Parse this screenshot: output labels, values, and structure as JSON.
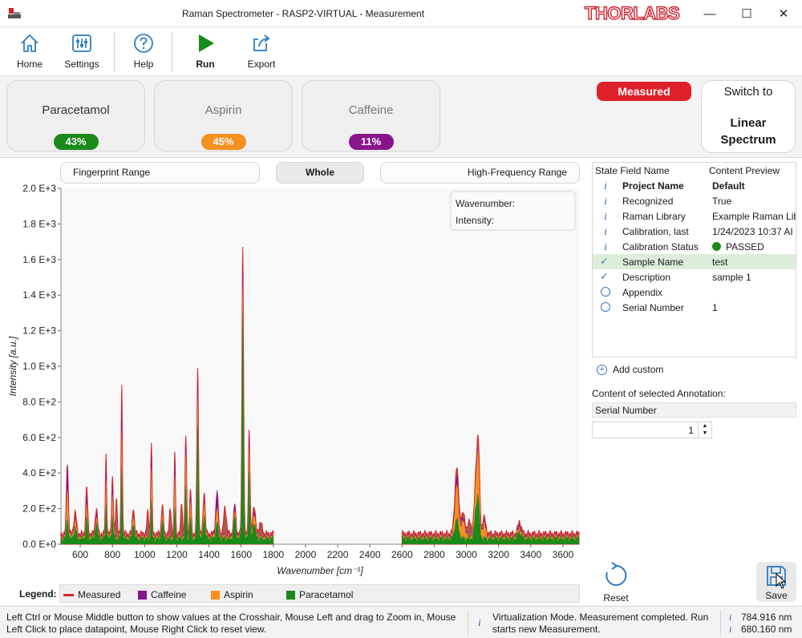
{
  "window": {
    "title": "Raman Spectrometer - RASP2-VIRTUAL - Measurement",
    "brand": "THORLABS",
    "minimize": "—",
    "maximize": "☐",
    "close": "✕"
  },
  "toolbar": {
    "home": "Home",
    "settings": "Settings",
    "help": "Help",
    "run": "Run",
    "export": "Export"
  },
  "substances": [
    {
      "name": "Paracetamol",
      "percent": "43%",
      "color": "#1a8a1a"
    },
    {
      "name": "Aspirin",
      "percent": "45%",
      "color": "#f5901e"
    },
    {
      "name": "Caffeine",
      "percent": "11%",
      "color": "#8a148c"
    }
  ],
  "status_badge": "Measured",
  "switch_button": {
    "line1": "Switch to",
    "line2": "Linear",
    "line3": "Spectrum"
  },
  "ranges": {
    "fingerprint": "Fingerprint Range",
    "whole": "Whole",
    "high_frequency": "High-Frequency Range"
  },
  "crosshair": {
    "wavenumber_label": "Wavenumber:",
    "intensity_label": "Intensity:"
  },
  "chart_data": {
    "type": "area",
    "xlabel": "Wavenumber [cm⁻¹]",
    "ylabel": "Intensity [a.u.]",
    "xlim": [
      480,
      3700
    ],
    "ylim": [
      0,
      2000
    ],
    "x_gap": [
      1800,
      2600
    ],
    "x_ticks": [
      "600",
      "800",
      "1000",
      "1200",
      "1400",
      "1600",
      "1800",
      "2000",
      "2200",
      "2400",
      "2600",
      "2800",
      "3000",
      "3200",
      "3400",
      "3600"
    ],
    "y_ticks": [
      "0.0 E+0",
      "2.0 E+2",
      "4.0 E+2",
      "6.0 E+2",
      "8.0 E+2",
      "1.0 E+3",
      "1.2 E+3",
      "1.4 E+3",
      "1.6 E+3",
      "1.8 E+3",
      "2.0 E+3"
    ],
    "series": [
      {
        "name": "Measured",
        "color": "#d8232a",
        "baseline": 60,
        "peaks": [
          [
            520,
            400,
            6
          ],
          [
            568,
            120,
            8
          ],
          [
            640,
            260,
            6
          ],
          [
            700,
            140,
            7
          ],
          [
            760,
            450,
            4
          ],
          [
            800,
            320,
            5
          ],
          [
            825,
            200,
            5
          ],
          [
            858,
            840,
            4
          ],
          [
            930,
            150,
            6
          ],
          [
            1020,
            120,
            6
          ],
          [
            1042,
            510,
            4
          ],
          [
            1110,
            160,
            6
          ],
          [
            1160,
            140,
            6
          ],
          [
            1188,
            460,
            4
          ],
          [
            1230,
            180,
            5
          ],
          [
            1256,
            550,
            5
          ],
          [
            1285,
            250,
            5
          ],
          [
            1330,
            930,
            5
          ],
          [
            1370,
            240,
            6
          ],
          [
            1450,
            230,
            8
          ],
          [
            1500,
            150,
            8
          ],
          [
            1560,
            160,
            7
          ],
          [
            1610,
            1620,
            5
          ],
          [
            1650,
            580,
            5
          ],
          [
            1680,
            160,
            8
          ],
          [
            1720,
            60,
            10
          ],
          [
            2940,
            370,
            12
          ],
          [
            2980,
            110,
            12
          ],
          [
            3020,
            70,
            10
          ],
          [
            3060,
            330,
            10
          ],
          [
            3075,
            420,
            8
          ],
          [
            3110,
            90,
            10
          ],
          [
            3330,
            70,
            10
          ]
        ]
      },
      {
        "name": "Caffeine",
        "color": "#8a148c",
        "baseline": 50,
        "peaks": [
          [
            520,
            420,
            6
          ],
          [
            568,
            100,
            8
          ],
          [
            640,
            220,
            6
          ],
          [
            700,
            130,
            7
          ],
          [
            760,
            400,
            4
          ],
          [
            800,
            290,
            5
          ],
          [
            858,
            780,
            4
          ],
          [
            930,
            120,
            6
          ],
          [
            1042,
            480,
            4
          ],
          [
            1110,
            130,
            6
          ],
          [
            1188,
            430,
            4
          ],
          [
            1256,
            520,
            5
          ],
          [
            1285,
            220,
            5
          ],
          [
            1330,
            880,
            5
          ],
          [
            1370,
            210,
            6
          ],
          [
            1450,
            260,
            8
          ],
          [
            1560,
            180,
            7
          ],
          [
            1610,
            1550,
            5
          ],
          [
            1650,
            560,
            5
          ],
          [
            1680,
            140,
            8
          ],
          [
            2940,
            340,
            12
          ],
          [
            2980,
            90,
            12
          ],
          [
            3075,
            390,
            8
          ],
          [
            3110,
            80,
            10
          ],
          [
            3330,
            60,
            10
          ]
        ]
      },
      {
        "name": "Aspirin",
        "color": "#f5901e",
        "baseline": 45,
        "peaks": [
          [
            520,
            280,
            6
          ],
          [
            568,
            90,
            8
          ],
          [
            640,
            180,
            6
          ],
          [
            700,
            110,
            7
          ],
          [
            760,
            330,
            4
          ],
          [
            800,
            240,
            5
          ],
          [
            858,
            620,
            4
          ],
          [
            930,
            120,
            6
          ],
          [
            1042,
            390,
            4
          ],
          [
            1110,
            130,
            6
          ],
          [
            1188,
            350,
            4
          ],
          [
            1256,
            470,
            5
          ],
          [
            1285,
            200,
            5
          ],
          [
            1330,
            800,
            5
          ],
          [
            1370,
            200,
            6
          ],
          [
            1450,
            160,
            8
          ],
          [
            1560,
            140,
            7
          ],
          [
            1610,
            1450,
            5
          ],
          [
            1650,
            500,
            5
          ],
          [
            1680,
            130,
            8
          ],
          [
            2940,
            290,
            12
          ],
          [
            2980,
            80,
            12
          ],
          [
            3060,
            290,
            10
          ],
          [
            3075,
            360,
            8
          ],
          [
            3110,
            70,
            10
          ],
          [
            3330,
            50,
            10
          ]
        ]
      },
      {
        "name": "Paracetamol",
        "color": "#1a8a1a",
        "baseline": 35,
        "peaks": [
          [
            520,
            120,
            6
          ],
          [
            568,
            60,
            8
          ],
          [
            640,
            120,
            6
          ],
          [
            700,
            90,
            7
          ],
          [
            760,
            200,
            4
          ],
          [
            800,
            130,
            5
          ],
          [
            858,
            410,
            4
          ],
          [
            930,
            90,
            6
          ],
          [
            1042,
            220,
            4
          ],
          [
            1110,
            100,
            6
          ],
          [
            1188,
            180,
            4
          ],
          [
            1256,
            300,
            5
          ],
          [
            1285,
            120,
            5
          ],
          [
            1330,
            650,
            5
          ],
          [
            1370,
            140,
            6
          ],
          [
            1450,
            90,
            8
          ],
          [
            1560,
            120,
            7
          ],
          [
            1610,
            1300,
            5
          ],
          [
            1650,
            380,
            5
          ],
          [
            1680,
            90,
            8
          ],
          [
            2940,
            110,
            12
          ],
          [
            3060,
            160,
            10
          ],
          [
            3075,
            180,
            8
          ],
          [
            3330,
            40,
            10
          ]
        ]
      }
    ]
  },
  "legend": {
    "title": "Legend:",
    "items": [
      "Measured",
      "Caffeine",
      "Aspirin",
      "Paracetamol"
    ]
  },
  "annotations": {
    "header": {
      "field": "State Field Name",
      "preview": "Content Preview"
    },
    "rows": [
      {
        "icon": "info",
        "key": "Project Name",
        "value": "Default",
        "bold": true
      },
      {
        "icon": "info",
        "key": "Recognized",
        "value": "True"
      },
      {
        "icon": "info",
        "key": "Raman Library",
        "value": "Example Raman Lib"
      },
      {
        "icon": "info",
        "key": "Calibration, last",
        "value": "1/24/2023 10:37 AI"
      },
      {
        "icon": "info",
        "key": "Calibration Status",
        "value": "PASSED",
        "dot": true
      },
      {
        "icon": "check",
        "key": "Sample Name",
        "value": "test",
        "selected": true
      },
      {
        "icon": "check",
        "key": "Description",
        "value": "sample 1"
      },
      {
        "icon": "circle",
        "key": "Appendix",
        "value": ""
      },
      {
        "icon": "circle",
        "key": "Serial Number",
        "value": "1"
      }
    ],
    "add_custom": "Add custom",
    "selected_label": "Content of selected Annotation:",
    "selected_field": "Serial Number",
    "selected_value": "1"
  },
  "actions": {
    "reset": "Reset",
    "save": "Save"
  },
  "statusbar": {
    "hint": "Left Ctrl or Mouse Middle button to show values at the Crosshair, Mouse Left and drag to Zoom in, Mouse Left Click to place datapoint, Mouse Right Click to reset view.",
    "message": "Virtualization Mode. Measurement completed. Run starts new Measurement.",
    "value1": "784.916 nm",
    "value2": "680.160 nm"
  }
}
